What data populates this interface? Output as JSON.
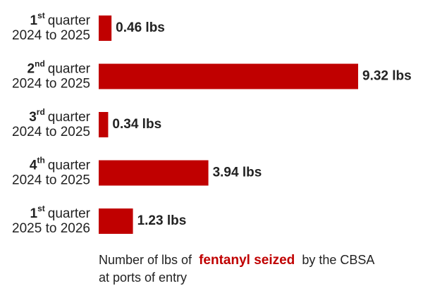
{
  "chart_data": {
    "type": "bar",
    "orientation": "horizontal",
    "color": "#c00000",
    "categories": [
      {
        "ordinal": "1",
        "suffix": "st",
        "label": "quarter",
        "period": "2024 to 2025"
      },
      {
        "ordinal": "2",
        "suffix": "nd",
        "label": "quarter",
        "period": "2024 to 2025"
      },
      {
        "ordinal": "3",
        "suffix": "rd",
        "label": "quarter",
        "period": "2024 to 2025"
      },
      {
        "ordinal": "4",
        "suffix": "th",
        "label": "quarter",
        "period": "2024 to 2025"
      },
      {
        "ordinal": "1",
        "suffix": "st",
        "label": "quarter",
        "period": "2025 to 2026"
      }
    ],
    "values": [
      0.46,
      9.32,
      0.34,
      3.94,
      1.23
    ],
    "value_labels": [
      "0.46 lbs",
      "9.32 lbs",
      "0.34 lbs",
      "3.94 lbs",
      "1.23 lbs"
    ],
    "caption": {
      "line1": [
        "Number of lbs of",
        "fentanyl seized",
        "by the CBSA"
      ],
      "line2": "at ports of entry"
    }
  }
}
